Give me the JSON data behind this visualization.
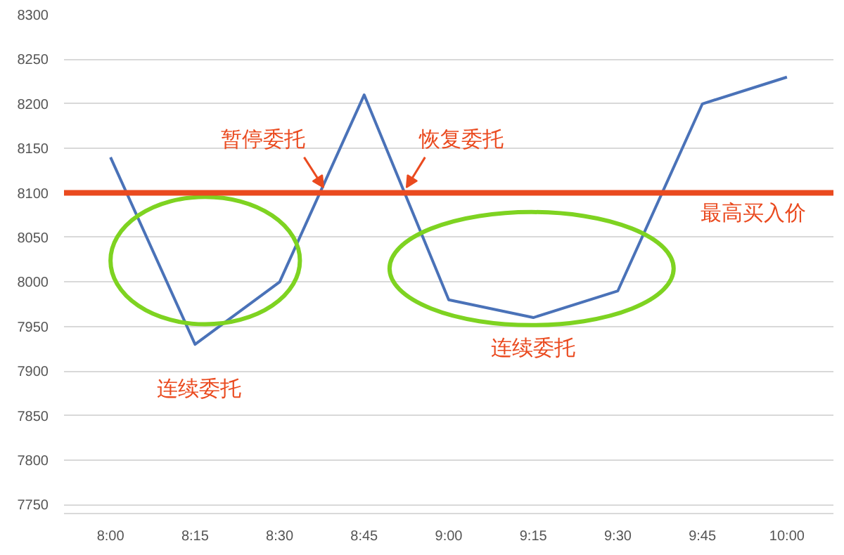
{
  "chart_data": {
    "type": "line",
    "categories": [
      "8:00",
      "8:15",
      "8:30",
      "8:45",
      "9:00",
      "9:15",
      "9:30",
      "9:45",
      "10:00"
    ],
    "series": [
      {
        "color": "#4a72b8",
        "values": [
          8140,
          7930,
          8000,
          8210,
          7980,
          7960,
          7990,
          8200,
          8230
        ]
      }
    ],
    "ylim": [
      7740,
      8300
    ],
    "yticks": [
      7750,
      7800,
      7850,
      7900,
      7950,
      8000,
      8050,
      8100,
      8150,
      8200,
      8250,
      8300
    ],
    "grid": "y",
    "marker": "none",
    "line_style": "solid",
    "ref_lines": [
      {
        "axis": "y",
        "value": 8100,
        "label": "最高买入价",
        "color": "#ea4a1f"
      }
    ],
    "annotations": [
      {
        "text": "暂停委托",
        "y": 8100
      },
      {
        "text": "恢复委托",
        "y": 8100
      },
      "连续委托",
      "连续委托"
    ]
  }
}
